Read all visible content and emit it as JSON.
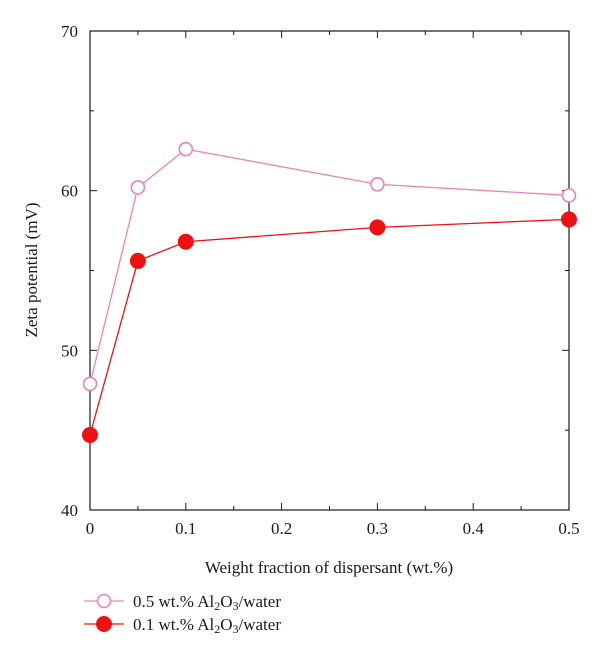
{
  "chart_data": {
    "type": "line",
    "title": "",
    "xlabel": "Weight fraction of dispersant (wt.%)",
    "ylabel": "Zeta potential (mV)",
    "xlim": [
      0,
      0.5
    ],
    "ylim": [
      40,
      70
    ],
    "x_ticks": [
      0,
      0.1,
      0.2,
      0.3,
      0.4,
      0.5
    ],
    "x_tick_labels": [
      "0",
      "0.1",
      "0.2",
      "0.3",
      "0.4",
      "0.5"
    ],
    "y_ticks": [
      40,
      50,
      60,
      70
    ],
    "y_tick_labels": [
      "40",
      "50",
      "60",
      "70"
    ],
    "grid": false,
    "legend_position": "bottom-left, below plot",
    "series": [
      {
        "name": "0.5 wt.% Al2O3/water",
        "legend_parts": [
          "0.5 wt.% Al",
          "2",
          "O",
          "3",
          "/water"
        ],
        "marker": "open-circle",
        "color": "#ee82b4",
        "x": [
          0,
          0.05,
          0.1,
          0.3,
          0.5
        ],
        "y": [
          47.9,
          60.2,
          62.6,
          60.4,
          59.7
        ]
      },
      {
        "name": "0.1 wt.% Al2O3/water",
        "legend_parts": [
          "0.1 wt.% Al",
          "2",
          "O",
          "3",
          "/water"
        ],
        "marker": "filled-circle",
        "color": "#ee1111",
        "x": [
          0,
          0.05,
          0.1,
          0.3,
          0.5
        ],
        "y": [
          44.7,
          55.6,
          56.8,
          57.7,
          58.2
        ]
      }
    ]
  }
}
